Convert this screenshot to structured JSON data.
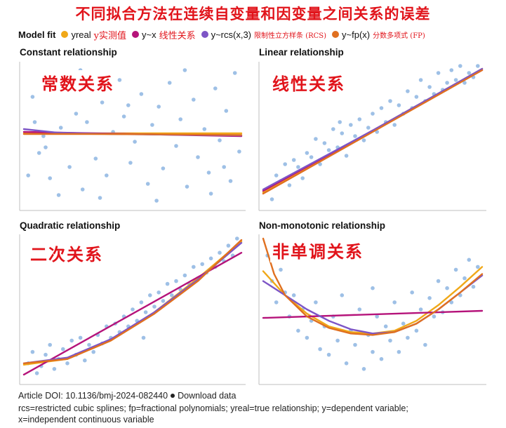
{
  "title": "不同拟合方法在连续自变量和因变量之间关系的误差",
  "legend": {
    "label": "Model fit",
    "items": [
      {
        "key": "yreal",
        "text": "yreal",
        "cn": "y实测值",
        "color": "#f0a818"
      },
      {
        "key": "lin",
        "text": "y~x",
        "cn": "线性关系",
        "color": "#b5137a"
      },
      {
        "key": "rcs",
        "text": "y~rcs(x,3)",
        "cn": "限制性立方样条 (RCS)",
        "color": "#7d55c6"
      },
      {
        "key": "fp",
        "text": "y~fp(x)",
        "cn": "分数多项式 (FP)",
        "color": "#e07020"
      }
    ]
  },
  "panels": [
    {
      "title": "Constant relationship",
      "overlay": "常数关系"
    },
    {
      "title": "Linear relationship",
      "overlay": "线性关系"
    },
    {
      "title": "Quadratic relationship",
      "overlay": "二次关系"
    },
    {
      "title": "Non-monotonic relationship",
      "overlay": "非单调关系"
    }
  ],
  "footer": {
    "doi": "Article DOI: 10.1136/bmj-2024-082440",
    "download": "Download data",
    "line2": "rcs=restricted cubic splines; fp=fractional polynomials; yreal=true relationship; y=dependent variable;",
    "line3": "x=independent continuous variable"
  },
  "colors": {
    "points": "#9ec0e6",
    "axis": "#bfbfbf"
  },
  "chart_data": [
    {
      "type": "scatter",
      "title": "Constant relationship",
      "xlim": [
        0,
        1
      ],
      "ylim": [
        0,
        1
      ],
      "points": [
        [
          0.04,
          0.78
        ],
        [
          0.07,
          0.38
        ],
        [
          0.09,
          0.5
        ],
        [
          0.1,
          0.42
        ],
        [
          0.12,
          0.2
        ],
        [
          0.14,
          0.93
        ],
        [
          0.17,
          0.56
        ],
        [
          0.19,
          0.82
        ],
        [
          0.21,
          0.28
        ],
        [
          0.24,
          0.66
        ],
        [
          0.27,
          0.12
        ],
        [
          0.29,
          0.6
        ],
        [
          0.31,
          0.85
        ],
        [
          0.33,
          0.34
        ],
        [
          0.36,
          0.74
        ],
        [
          0.38,
          0.22
        ],
        [
          0.41,
          0.53
        ],
        [
          0.44,
          0.9
        ],
        [
          0.46,
          0.64
        ],
        [
          0.49,
          0.31
        ],
        [
          0.51,
          0.46
        ],
        [
          0.54,
          0.8
        ],
        [
          0.57,
          0.16
        ],
        [
          0.59,
          0.58
        ],
        [
          0.62,
          0.71
        ],
        [
          0.64,
          0.27
        ],
        [
          0.67,
          0.88
        ],
        [
          0.7,
          0.43
        ],
        [
          0.72,
          0.62
        ],
        [
          0.75,
          0.14
        ],
        [
          0.78,
          0.76
        ],
        [
          0.8,
          0.35
        ],
        [
          0.83,
          0.55
        ],
        [
          0.85,
          0.24
        ],
        [
          0.88,
          0.84
        ],
        [
          0.9,
          0.47
        ],
        [
          0.93,
          0.68
        ],
        [
          0.95,
          0.18
        ],
        [
          0.97,
          0.95
        ],
        [
          0.99,
          0.39
        ],
        [
          0.05,
          0.6
        ],
        [
          0.16,
          0.08
        ],
        [
          0.26,
          0.97
        ],
        [
          0.35,
          0.06
        ],
        [
          0.48,
          0.72
        ],
        [
          0.61,
          0.04
        ],
        [
          0.74,
          0.97
        ],
        [
          0.86,
          0.09
        ],
        [
          0.92,
          0.28
        ],
        [
          0.02,
          0.22
        ]
      ],
      "series": [
        {
          "name": "yreal",
          "color": "#f0a818",
          "x": [
            0,
            1
          ],
          "y": [
            0.52,
            0.52
          ]
        },
        {
          "name": "y~x",
          "color": "#b5137a",
          "x": [
            0,
            1
          ],
          "y": [
            0.53,
            0.5
          ]
        },
        {
          "name": "y~rcs(x,3)",
          "color": "#7d55c6",
          "x": [
            0,
            0.15,
            0.4,
            0.7,
            1
          ],
          "y": [
            0.55,
            0.525,
            0.515,
            0.51,
            0.505
          ]
        },
        {
          "name": "y~fp(x)",
          "color": "#e07020",
          "x": [
            0,
            0.3,
            0.6,
            1
          ],
          "y": [
            0.515,
            0.515,
            0.513,
            0.508
          ]
        }
      ]
    },
    {
      "type": "scatter",
      "title": "Linear relationship",
      "xlim": [
        0,
        1
      ],
      "ylim": [
        0,
        1
      ],
      "points": [
        [
          0.02,
          0.12
        ],
        [
          0.04,
          0.05
        ],
        [
          0.06,
          0.22
        ],
        [
          0.08,
          0.18
        ],
        [
          0.1,
          0.3
        ],
        [
          0.12,
          0.15
        ],
        [
          0.14,
          0.33
        ],
        [
          0.16,
          0.28
        ],
        [
          0.18,
          0.2
        ],
        [
          0.2,
          0.38
        ],
        [
          0.22,
          0.35
        ],
        [
          0.24,
          0.48
        ],
        [
          0.26,
          0.3
        ],
        [
          0.28,
          0.45
        ],
        [
          0.3,
          0.4
        ],
        [
          0.32,
          0.55
        ],
        [
          0.34,
          0.42
        ],
        [
          0.36,
          0.52
        ],
        [
          0.38,
          0.36
        ],
        [
          0.4,
          0.58
        ],
        [
          0.42,
          0.5
        ],
        [
          0.44,
          0.62
        ],
        [
          0.46,
          0.47
        ],
        [
          0.48,
          0.56
        ],
        [
          0.5,
          0.66
        ],
        [
          0.52,
          0.53
        ],
        [
          0.54,
          0.7
        ],
        [
          0.56,
          0.6
        ],
        [
          0.58,
          0.75
        ],
        [
          0.6,
          0.58
        ],
        [
          0.62,
          0.72
        ],
        [
          0.64,
          0.66
        ],
        [
          0.66,
          0.82
        ],
        [
          0.68,
          0.7
        ],
        [
          0.7,
          0.78
        ],
        [
          0.72,
          0.9
        ],
        [
          0.74,
          0.75
        ],
        [
          0.76,
          0.85
        ],
        [
          0.78,
          0.8
        ],
        [
          0.8,
          0.95
        ],
        [
          0.82,
          0.83
        ],
        [
          0.84,
          0.88
        ],
        [
          0.86,
          0.97
        ],
        [
          0.88,
          0.9
        ],
        [
          0.9,
          1.0
        ],
        [
          0.92,
          0.88
        ],
        [
          0.94,
          0.95
        ],
        [
          0.96,
          0.92
        ],
        [
          0.98,
          1.0
        ],
        [
          0.35,
          0.6
        ]
      ],
      "series": [
        {
          "name": "yreal",
          "color": "#f0a818",
          "x": [
            0,
            1
          ],
          "y": [
            0.1,
            0.98
          ]
        },
        {
          "name": "y~x",
          "color": "#b5137a",
          "x": [
            0,
            1
          ],
          "y": [
            0.11,
            0.97
          ]
        },
        {
          "name": "y~rcs(x,3)",
          "color": "#7d55c6",
          "x": [
            0,
            0.5,
            1
          ],
          "y": [
            0.12,
            0.54,
            0.98
          ]
        },
        {
          "name": "y~fp(x)",
          "color": "#e07020",
          "x": [
            0,
            0.5,
            1
          ],
          "y": [
            0.09,
            0.53,
            0.97
          ]
        }
      ]
    },
    {
      "type": "scatter",
      "title": "Quadratic relationship",
      "xlim": [
        0,
        1
      ],
      "ylim": [
        0,
        1
      ],
      "points": [
        [
          0.02,
          0.12
        ],
        [
          0.04,
          0.2
        ],
        [
          0.06,
          0.05
        ],
        [
          0.08,
          0.1
        ],
        [
          0.1,
          0.18
        ],
        [
          0.12,
          0.25
        ],
        [
          0.14,
          0.08
        ],
        [
          0.16,
          0.15
        ],
        [
          0.18,
          0.22
        ],
        [
          0.2,
          0.12
        ],
        [
          0.22,
          0.28
        ],
        [
          0.24,
          0.18
        ],
        [
          0.26,
          0.3
        ],
        [
          0.28,
          0.14
        ],
        [
          0.3,
          0.25
        ],
        [
          0.32,
          0.2
        ],
        [
          0.34,
          0.32
        ],
        [
          0.36,
          0.26
        ],
        [
          0.38,
          0.38
        ],
        [
          0.4,
          0.3
        ],
        [
          0.42,
          0.4
        ],
        [
          0.44,
          0.34
        ],
        [
          0.46,
          0.45
        ],
        [
          0.48,
          0.38
        ],
        [
          0.5,
          0.5
        ],
        [
          0.52,
          0.42
        ],
        [
          0.54,
          0.55
        ],
        [
          0.56,
          0.48
        ],
        [
          0.58,
          0.6
        ],
        [
          0.6,
          0.52
        ],
        [
          0.62,
          0.62
        ],
        [
          0.64,
          0.56
        ],
        [
          0.66,
          0.68
        ],
        [
          0.68,
          0.6
        ],
        [
          0.7,
          0.7
        ],
        [
          0.72,
          0.64
        ],
        [
          0.74,
          0.74
        ],
        [
          0.76,
          0.68
        ],
        [
          0.78,
          0.8
        ],
        [
          0.8,
          0.72
        ],
        [
          0.82,
          0.82
        ],
        [
          0.84,
          0.76
        ],
        [
          0.86,
          0.86
        ],
        [
          0.88,
          0.8
        ],
        [
          0.9,
          0.9
        ],
        [
          0.92,
          0.84
        ],
        [
          0.94,
          0.95
        ],
        [
          0.96,
          0.88
        ],
        [
          0.98,
          1.0
        ],
        [
          0.55,
          0.3
        ]
      ],
      "series": [
        {
          "name": "yreal",
          "color": "#f0a818",
          "x": [
            0,
            0.2,
            0.4,
            0.6,
            0.8,
            1
          ],
          "y": [
            0.11,
            0.15,
            0.28,
            0.48,
            0.72,
            0.98
          ]
        },
        {
          "name": "y~x",
          "color": "#b5137a",
          "x": [
            0,
            1
          ],
          "y": [
            0.04,
            0.9
          ]
        },
        {
          "name": "y~rcs(x,3)",
          "color": "#7d55c6",
          "x": [
            0,
            0.2,
            0.4,
            0.6,
            0.8,
            1
          ],
          "y": [
            0.12,
            0.16,
            0.29,
            0.48,
            0.71,
            0.97
          ]
        },
        {
          "name": "y~fp(x)",
          "color": "#e07020",
          "x": [
            0,
            0.2,
            0.4,
            0.6,
            0.8,
            1
          ],
          "y": [
            0.12,
            0.15,
            0.28,
            0.47,
            0.7,
            0.99
          ]
        }
      ]
    },
    {
      "type": "scatter",
      "title": "Non-monotonic relationship",
      "xlim": [
        0,
        1
      ],
      "ylim": [
        0,
        1
      ],
      "points": [
        [
          0.02,
          0.88
        ],
        [
          0.04,
          0.7
        ],
        [
          0.06,
          0.55
        ],
        [
          0.08,
          0.78
        ],
        [
          0.1,
          0.62
        ],
        [
          0.12,
          0.45
        ],
        [
          0.14,
          0.6
        ],
        [
          0.16,
          0.35
        ],
        [
          0.18,
          0.5
        ],
        [
          0.2,
          0.3
        ],
        [
          0.22,
          0.42
        ],
        [
          0.24,
          0.55
        ],
        [
          0.26,
          0.22
        ],
        [
          0.28,
          0.38
        ],
        [
          0.3,
          0.18
        ],
        [
          0.32,
          0.45
        ],
        [
          0.34,
          0.28
        ],
        [
          0.36,
          0.6
        ],
        [
          0.38,
          0.12
        ],
        [
          0.4,
          0.35
        ],
        [
          0.42,
          0.25
        ],
        [
          0.44,
          0.5
        ],
        [
          0.46,
          0.08
        ],
        [
          0.48,
          0.32
        ],
        [
          0.5,
          0.2
        ],
        [
          0.52,
          0.45
        ],
        [
          0.54,
          0.15
        ],
        [
          0.56,
          0.38
        ],
        [
          0.58,
          0.28
        ],
        [
          0.6,
          0.55
        ],
        [
          0.62,
          0.2
        ],
        [
          0.64,
          0.4
        ],
        [
          0.66,
          0.3
        ],
        [
          0.68,
          0.62
        ],
        [
          0.7,
          0.35
        ],
        [
          0.72,
          0.5
        ],
        [
          0.74,
          0.25
        ],
        [
          0.76,
          0.58
        ],
        [
          0.78,
          0.45
        ],
        [
          0.8,
          0.7
        ],
        [
          0.82,
          0.48
        ],
        [
          0.84,
          0.65
        ],
        [
          0.86,
          0.55
        ],
        [
          0.88,
          0.78
        ],
        [
          0.9,
          0.6
        ],
        [
          0.92,
          0.72
        ],
        [
          0.94,
          0.85
        ],
        [
          0.96,
          0.66
        ],
        [
          0.98,
          0.8
        ],
        [
          0.5,
          0.65
        ]
      ],
      "series": [
        {
          "name": "yreal",
          "color": "#f0a818",
          "x": [
            0,
            0.1,
            0.2,
            0.3,
            0.4,
            0.5,
            0.6,
            0.7,
            0.8,
            0.9,
            1
          ],
          "y": [
            0.77,
            0.6,
            0.47,
            0.38,
            0.34,
            0.33,
            0.35,
            0.42,
            0.53,
            0.66,
            0.8
          ]
        },
        {
          "name": "y~x",
          "color": "#b5137a",
          "x": [
            0,
            1
          ],
          "y": [
            0.44,
            0.49
          ]
        },
        {
          "name": "y~rcs(x,3)",
          "color": "#7d55c6",
          "x": [
            0,
            0.1,
            0.2,
            0.3,
            0.4,
            0.5,
            0.6,
            0.7,
            0.8,
            0.9,
            1
          ],
          "y": [
            0.7,
            0.6,
            0.5,
            0.42,
            0.36,
            0.33,
            0.34,
            0.4,
            0.5,
            0.62,
            0.74
          ]
        },
        {
          "name": "y~fp(x)",
          "color": "#e07020",
          "x": [
            0,
            0.05,
            0.1,
            0.2,
            0.3,
            0.4,
            0.5,
            0.6,
            0.7,
            0.8,
            0.9,
            1
          ],
          "y": [
            1.0,
            0.75,
            0.6,
            0.45,
            0.37,
            0.33,
            0.32,
            0.34,
            0.4,
            0.5,
            0.62,
            0.75
          ]
        }
      ]
    }
  ]
}
